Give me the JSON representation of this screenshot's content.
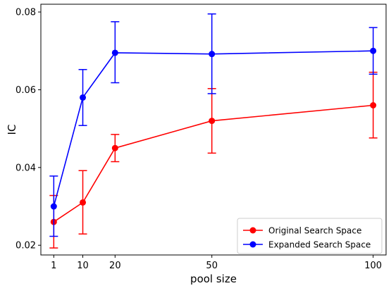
{
  "chart_data": {
    "type": "line",
    "xlabel": "pool size",
    "ylabel": "IC",
    "x": [
      1,
      10,
      20,
      50,
      100
    ],
    "x_tick_labels": [
      "1",
      "10",
      "20",
      "50",
      "100"
    ],
    "xlim": [
      -3,
      104
    ],
    "ylim": [
      0.0175,
      0.082
    ],
    "y_ticks": [
      0.02,
      0.04,
      0.06,
      0.08
    ],
    "y_tick_labels": [
      "0.02",
      "0.04",
      "0.06",
      "0.08"
    ],
    "grid": false,
    "legend_position": "lower-right",
    "series": [
      {
        "name": "Original Search Space",
        "color": "#ff0000",
        "values": [
          0.026,
          0.031,
          0.045,
          0.052,
          0.056
        ],
        "err_low": [
          0.0193,
          0.0229,
          0.0415,
          0.0437,
          0.0476
        ],
        "err_high": [
          0.0328,
          0.0392,
          0.0485,
          0.0603,
          0.0645
        ]
      },
      {
        "name": "Expanded Search Space",
        "color": "#0000ff",
        "values": [
          0.03,
          0.058,
          0.0695,
          0.0692,
          0.07
        ],
        "err_low": [
          0.0223,
          0.0508,
          0.0618,
          0.059,
          0.064
        ],
        "err_high": [
          0.0378,
          0.0652,
          0.0775,
          0.0795,
          0.076
        ]
      }
    ]
  }
}
